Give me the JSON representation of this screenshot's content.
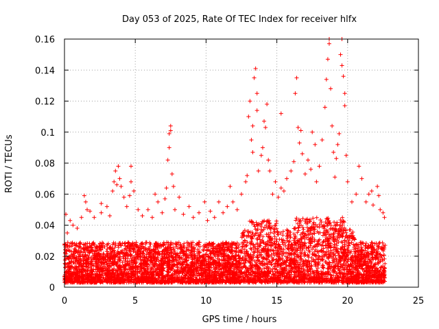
{
  "chart_data": {
    "type": "scatter",
    "title": "Day 053 of 2025, Rate Of TEC Index for receiver hlfx",
    "xlabel": "GPS time / hours",
    "ylabel": "ROTI / TECUs",
    "xlim": [
      0,
      25
    ],
    "ylim": [
      0,
      0.16
    ],
    "grid": true,
    "marker": "+",
    "color": "#ff0000",
    "x_ticks": [
      0,
      5,
      10,
      15,
      20,
      25
    ],
    "x_tick_labels": [
      "0",
      "5",
      "10",
      "15",
      "20",
      "25"
    ],
    "y_ticks": [
      0,
      0.02,
      0.04,
      0.06,
      0.08,
      0.1,
      0.12,
      0.14,
      0.16
    ],
    "y_tick_labels": [
      "0",
      "0.02",
      "0.04",
      "0.06",
      "0.08",
      "0.1",
      "0.12",
      "0.14",
      "0.16"
    ],
    "series": [
      {
        "name": "ROTI",
        "points": [
          [
            0.1,
            0.047
          ],
          [
            0.2,
            0.035
          ],
          [
            0.4,
            0.043
          ],
          [
            0.6,
            0.04
          ],
          [
            0.9,
            0.038
          ],
          [
            1.2,
            0.045
          ],
          [
            1.4,
            0.059
          ],
          [
            1.5,
            0.055
          ],
          [
            1.6,
            0.05
          ],
          [
            1.8,
            0.049
          ],
          [
            2.1,
            0.045
          ],
          [
            2.6,
            0.048
          ],
          [
            2.6,
            0.054
          ],
          [
            3.0,
            0.052
          ],
          [
            3.2,
            0.046
          ],
          [
            3.4,
            0.062
          ],
          [
            3.5,
            0.068
          ],
          [
            3.6,
            0.075
          ],
          [
            3.7,
            0.066
          ],
          [
            3.8,
            0.078
          ],
          [
            3.9,
            0.07
          ],
          [
            4.0,
            0.065
          ],
          [
            4.2,
            0.058
          ],
          [
            4.4,
            0.052
          ],
          [
            4.6,
            0.059
          ],
          [
            4.7,
            0.078
          ],
          [
            4.7,
            0.068
          ],
          [
            4.9,
            0.062
          ],
          [
            5.2,
            0.05
          ],
          [
            5.5,
            0.046
          ],
          [
            5.9,
            0.05
          ],
          [
            6.2,
            0.045
          ],
          [
            6.4,
            0.06
          ],
          [
            6.6,
            0.055
          ],
          [
            6.9,
            0.048
          ],
          [
            7.1,
            0.057
          ],
          [
            7.2,
            0.064
          ],
          [
            7.3,
            0.082
          ],
          [
            7.4,
            0.09
          ],
          [
            7.4,
            0.099
          ],
          [
            7.5,
            0.104
          ],
          [
            7.5,
            0.101
          ],
          [
            7.6,
            0.073
          ],
          [
            7.7,
            0.065
          ],
          [
            7.8,
            0.05
          ],
          [
            8.1,
            0.058
          ],
          [
            8.4,
            0.047
          ],
          [
            8.8,
            0.052
          ],
          [
            9.1,
            0.045
          ],
          [
            9.5,
            0.048
          ],
          [
            9.9,
            0.055
          ],
          [
            10.1,
            0.043
          ],
          [
            10.3,
            0.049
          ],
          [
            10.6,
            0.045
          ],
          [
            10.9,
            0.055
          ],
          [
            11.2,
            0.048
          ],
          [
            11.5,
            0.052
          ],
          [
            11.7,
            0.065
          ],
          [
            11.9,
            0.055
          ],
          [
            12.2,
            0.05
          ],
          [
            12.5,
            0.06
          ],
          [
            12.8,
            0.068
          ],
          [
            12.9,
            0.072
          ],
          [
            13.0,
            0.11
          ],
          [
            13.1,
            0.12
          ],
          [
            13.2,
            0.095
          ],
          [
            13.3,
            0.104
          ],
          [
            13.3,
            0.087
          ],
          [
            13.4,
            0.135
          ],
          [
            13.5,
            0.141
          ],
          [
            13.6,
            0.125
          ],
          [
            13.6,
            0.114
          ],
          [
            13.7,
            0.075
          ],
          [
            13.9,
            0.085
          ],
          [
            14.0,
            0.09
          ],
          [
            14.1,
            0.107
          ],
          [
            14.2,
            0.103
          ],
          [
            14.3,
            0.118
          ],
          [
            14.4,
            0.082
          ],
          [
            14.5,
            0.075
          ],
          [
            14.7,
            0.06
          ],
          [
            14.9,
            0.068
          ],
          [
            15.1,
            0.058
          ],
          [
            15.3,
            0.064
          ],
          [
            15.3,
            0.112
          ],
          [
            15.5,
            0.062
          ],
          [
            15.7,
            0.07
          ],
          [
            16.0,
            0.075
          ],
          [
            16.2,
            0.081
          ],
          [
            16.3,
            0.125
          ],
          [
            16.4,
            0.135
          ],
          [
            16.5,
            0.103
          ],
          [
            16.6,
            0.093
          ],
          [
            16.7,
            0.101
          ],
          [
            16.8,
            0.086
          ],
          [
            17.0,
            0.073
          ],
          [
            17.2,
            0.082
          ],
          [
            17.4,
            0.076
          ],
          [
            17.5,
            0.1
          ],
          [
            17.7,
            0.092
          ],
          [
            17.8,
            0.068
          ],
          [
            18.0,
            0.078
          ],
          [
            18.2,
            0.095
          ],
          [
            18.4,
            0.116
          ],
          [
            18.5,
            0.134
          ],
          [
            18.6,
            0.147
          ],
          [
            18.7,
            0.157
          ],
          [
            18.7,
            0.16
          ],
          [
            18.8,
            0.128
          ],
          [
            18.9,
            0.104
          ],
          [
            19.0,
            0.087
          ],
          [
            19.1,
            0.071
          ],
          [
            19.2,
            0.083
          ],
          [
            19.3,
            0.092
          ],
          [
            19.4,
            0.099
          ],
          [
            19.5,
            0.15
          ],
          [
            19.6,
            0.16
          ],
          [
            19.6,
            0.143
          ],
          [
            19.7,
            0.136
          ],
          [
            19.8,
            0.125
          ],
          [
            19.8,
            0.117
          ],
          [
            19.9,
            0.085
          ],
          [
            20.0,
            0.068
          ],
          [
            20.3,
            0.055
          ],
          [
            20.6,
            0.06
          ],
          [
            20.8,
            0.078
          ],
          [
            21.0,
            0.07
          ],
          [
            21.3,
            0.055
          ],
          [
            21.5,
            0.06
          ],
          [
            21.7,
            0.062
          ],
          [
            21.8,
            0.053
          ],
          [
            22.1,
            0.065
          ],
          [
            22.2,
            0.059
          ],
          [
            22.3,
            0.05
          ],
          [
            22.5,
            0.048
          ],
          [
            22.6,
            0.045
          ]
        ]
      }
    ]
  }
}
